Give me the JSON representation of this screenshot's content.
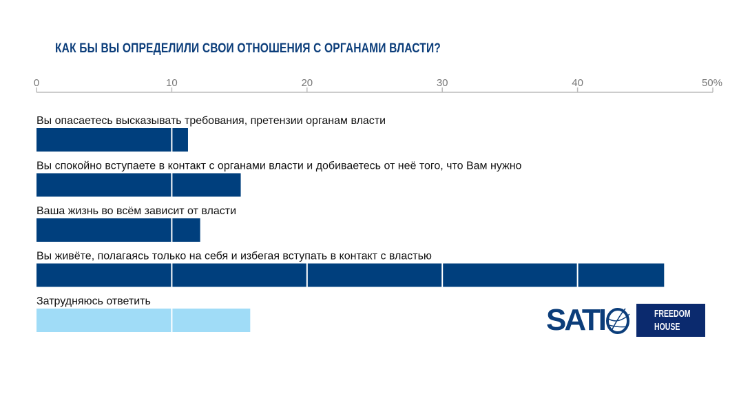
{
  "chart_data": {
    "type": "bar",
    "orientation": "horizontal",
    "title": "КАК БЫ ВЫ ОПРЕДЕЛИЛИ СВОИ ОТНОШЕНИЯ С ОРГАНАМИ ВЛАСТИ?",
    "categories": [
      "Вы опасаетесь высказывать требования, претензии органам власти",
      "Вы спокойно вступаете в контакт с органами власти и добиваетесь от неё того, что Вам нужно",
      "Ваша жизнь во всём зависит от власти",
      "Вы живёте, полагаясь только на себя и избегая вступать в контакт с властью",
      "Затрудняюсь ответить"
    ],
    "values": [
      11.2,
      15.1,
      12.1,
      46.4,
      15.8
    ],
    "colors": [
      "#003f7d",
      "#003f7d",
      "#003f7d",
      "#003f7d",
      "#a0dcf7"
    ],
    "xlim": [
      0,
      50
    ],
    "ticks": [
      "0",
      "10",
      "20",
      "30",
      "40",
      "50%"
    ],
    "axis_position": "top",
    "grid": false
  },
  "logos": {
    "sati": "SATI",
    "freedom_house": [
      "FREEDOM",
      "HOUSE"
    ]
  }
}
